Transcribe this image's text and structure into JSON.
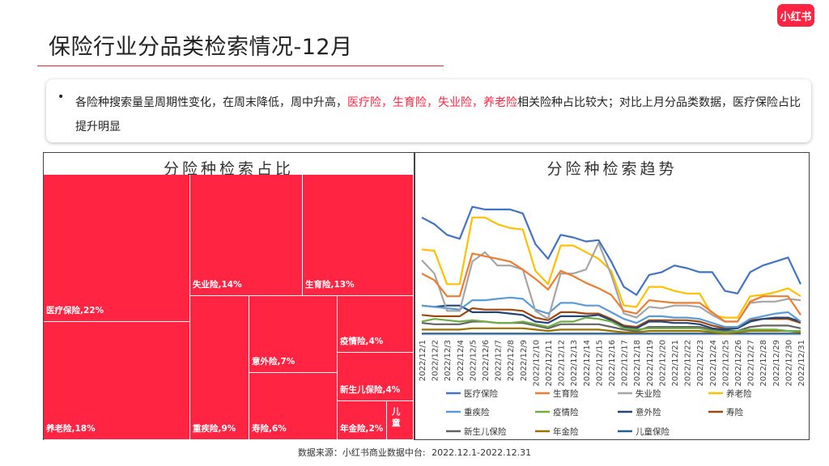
{
  "header": {
    "title": "保险行业分品类检索情况-12月",
    "logo": "小红书"
  },
  "bullet": {
    "prefix": "各险种搜索量呈周期性变化，在周末降低，周中升高，",
    "highlight": "医疗险，生育险，失业险，养老险",
    "suffix": "相关险种占比较大；对比上月分品类数据，医疗保险占比提升明显"
  },
  "footer": {
    "source_label": "数据来源：小红书商业数据中台:",
    "date_range": "2022.12.1-2022.12.31"
  },
  "chart_data": [
    {
      "type": "treemap",
      "title": "分险种检索占比",
      "items": [
        {
          "label": "医疗保险,22%",
          "value": 22
        },
        {
          "label": "养老险,18%",
          "value": 18
        },
        {
          "label": "失业险,14%",
          "value": 14
        },
        {
          "label": "生育险,13%",
          "value": 13
        },
        {
          "label": "重疾险,9%",
          "value": 9
        },
        {
          "label": "意外险,7%",
          "value": 7
        },
        {
          "label": "寿险,6%",
          "value": 6
        },
        {
          "label": "疫情险,4%",
          "value": 4
        },
        {
          "label": "新生儿保险,4%",
          "value": 4
        },
        {
          "label": "年金险,2%",
          "value": 2
        },
        {
          "label": "儿童",
          "value": 1
        }
      ]
    },
    {
      "type": "line",
      "title": "分险种检索趋势",
      "ylim": [
        0,
        100
      ],
      "x": [
        "2022/12/1",
        "2022/12/2",
        "2022/12/3",
        "2022/12/4",
        "2022/12/5",
        "2022/12/6",
        "2022/12/7",
        "2022/12/8",
        "2022/12/9",
        "2022/12/10",
        "2022/12/11",
        "2022/12/12",
        "2022/12/13",
        "2022/12/14",
        "2022/12/15",
        "2022/12/16",
        "2022/12/17",
        "2022/12/18",
        "2022/12/19",
        "2022/12/20",
        "2022/12/21",
        "2022/12/22",
        "2022/12/23",
        "2022/12/24",
        "2022/12/25",
        "2022/12/26",
        "2022/12/27",
        "2022/12/28",
        "2022/12/29",
        "2022/12/30",
        "2022/12/31"
      ],
      "series": [
        {
          "name": "医疗保险",
          "color": "#4472c4",
          "values": [
            88,
            83,
            75,
            72,
            96,
            94,
            94,
            94,
            91,
            68,
            57,
            75,
            73,
            70,
            71,
            55,
            36,
            30,
            45,
            47,
            52,
            50,
            47,
            47,
            33,
            31,
            47,
            52,
            55,
            58,
            38
          ]
        },
        {
          "name": "生育险",
          "color": "#ed7d31",
          "values": [
            46,
            41,
            29,
            29,
            61,
            59,
            57,
            55,
            49,
            42,
            34,
            48,
            44,
            39,
            35,
            30,
            18,
            16,
            26,
            25,
            24,
            24,
            24,
            17,
            10,
            10,
            25,
            29,
            29,
            29,
            15
          ]
        },
        {
          "name": "失业险",
          "color": "#a5a5a5",
          "values": [
            56,
            46,
            18,
            18,
            55,
            62,
            52,
            52,
            49,
            18,
            12,
            46,
            46,
            49,
            69,
            45,
            16,
            13,
            21,
            20,
            22,
            22,
            21,
            15,
            10,
            10,
            24,
            25,
            25,
            27,
            26
          ]
        },
        {
          "name": "养老险",
          "color": "#ffc000",
          "values": [
            64,
            63,
            38,
            38,
            88,
            88,
            83,
            80,
            79,
            48,
            38,
            67,
            67,
            62,
            57,
            48,
            22,
            21,
            36,
            36,
            33,
            31,
            31,
            15,
            13,
            13,
            29,
            30,
            32,
            35,
            29
          ]
        },
        {
          "name": "重疾险",
          "color": "#5b9bd5",
          "values": [
            22,
            21,
            20,
            19,
            26,
            26,
            27,
            28,
            27,
            19,
            16,
            24,
            24,
            22,
            22,
            17,
            12,
            9,
            14,
            14,
            13,
            13,
            12,
            9,
            6,
            6,
            12,
            14,
            16,
            17,
            10
          ]
        },
        {
          "name": "疫情险",
          "color": "#70ad47",
          "values": [
            10,
            12,
            11,
            10,
            11,
            10,
            9,
            9,
            10,
            8,
            6,
            10,
            10,
            13,
            12,
            10,
            5,
            4,
            5,
            5,
            5,
            5,
            5,
            3,
            2,
            3,
            4,
            4,
            4,
            3,
            3
          ]
        },
        {
          "name": "意外险",
          "color": "#264478",
          "values": [
            22,
            21,
            22,
            22,
            17,
            17,
            17,
            16,
            15,
            10,
            9,
            14,
            14,
            14,
            15,
            11,
            6,
            5,
            10,
            10,
            9,
            9,
            8,
            5,
            4,
            5,
            10,
            12,
            13,
            13,
            10
          ]
        },
        {
          "name": "寿险",
          "color": "#9e480e",
          "values": [
            15,
            14,
            14,
            14,
            20,
            19,
            19,
            19,
            18,
            13,
            11,
            17,
            17,
            16,
            16,
            12,
            7,
            6,
            11,
            11,
            11,
            11,
            10,
            7,
            5,
            5,
            11,
            12,
            12,
            12,
            9
          ]
        },
        {
          "name": "新生儿保险",
          "color": "#636363",
          "values": [
            9,
            8,
            8,
            8,
            10,
            10,
            9,
            9,
            9,
            7,
            5,
            8,
            8,
            8,
            8,
            6,
            4,
            3,
            6,
            6,
            6,
            6,
            6,
            4,
            3,
            3,
            6,
            7,
            7,
            7,
            5
          ]
        },
        {
          "name": "年金险",
          "color": "#997300",
          "values": [
            4,
            4,
            4,
            4,
            5,
            5,
            5,
            5,
            5,
            4,
            3,
            4,
            4,
            4,
            4,
            3,
            2,
            2,
            3,
            3,
            3,
            3,
            3,
            2,
            1,
            2,
            3,
            3,
            3,
            3,
            2
          ]
        },
        {
          "name": "儿童保险",
          "color": "#255e91",
          "values": [
            1,
            1,
            1,
            1,
            1,
            1,
            1,
            1,
            1,
            1,
            1,
            1,
            1,
            1,
            1,
            1,
            1,
            1,
            1,
            1,
            1,
            1,
            1,
            1,
            1,
            1,
            1,
            1,
            1,
            1,
            1
          ]
        }
      ]
    }
  ]
}
